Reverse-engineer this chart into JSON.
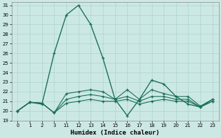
{
  "xlabel": "Humidex (Indice chaleur)",
  "bg_color": "#cce8e4",
  "grid_color": "#aad4cc",
  "line_color": "#1a6e5a",
  "x_labels": [
    "0",
    "1",
    "2",
    "3",
    "11",
    "12",
    "13",
    "14",
    "15",
    "16",
    "17",
    "18",
    "19",
    "20",
    "21",
    "22",
    "23"
  ],
  "ymin": 19,
  "ymax": 31,
  "series": [
    {
      "y": [
        20.0,
        20.9,
        20.7,
        26.0,
        30.0,
        31.0,
        29.0,
        25.5,
        21.2,
        19.5,
        21.2,
        23.2,
        22.8,
        21.5,
        20.7,
        20.4,
        21.2
      ]
    },
    {
      "y": [
        20.0,
        20.9,
        20.8,
        19.8,
        21.8,
        22.0,
        22.2,
        22.0,
        21.2,
        22.2,
        21.2,
        22.2,
        21.8,
        21.5,
        21.5,
        20.5,
        21.2
      ]
    },
    {
      "y": [
        20.0,
        20.9,
        20.8,
        19.8,
        21.2,
        21.5,
        21.7,
        21.5,
        21.2,
        21.5,
        21.0,
        21.5,
        21.5,
        21.2,
        21.2,
        20.4,
        21.0
      ]
    },
    {
      "y": [
        20.0,
        20.9,
        20.8,
        19.8,
        20.8,
        21.0,
        21.2,
        21.0,
        21.0,
        21.2,
        20.7,
        21.0,
        21.2,
        21.0,
        21.0,
        20.4,
        21.0
      ]
    }
  ]
}
